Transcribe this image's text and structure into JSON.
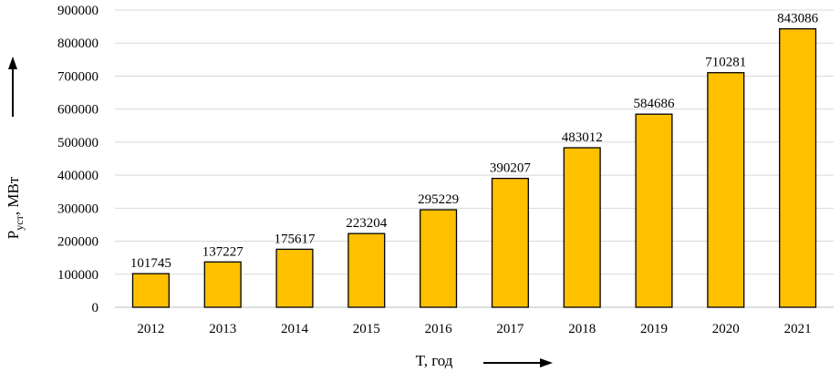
{
  "chart_data": {
    "type": "bar",
    "categories": [
      "2012",
      "2013",
      "2014",
      "2015",
      "2016",
      "2017",
      "2018",
      "2019",
      "2020",
      "2021"
    ],
    "values": [
      101745,
      137227,
      175617,
      223204,
      295229,
      390207,
      483012,
      584686,
      710281,
      843086
    ],
    "xlabel": "T, год",
    "ylabel": {
      "prefix": "P",
      "subscript": "уст",
      "suffix": ", МВт"
    },
    "ylim": [
      0,
      900000
    ],
    "yticks": [
      "0",
      "100000",
      "200000",
      "300000",
      "400000",
      "500000",
      "600000",
      "700000",
      "800000",
      "900000"
    ],
    "grid": true,
    "legend": "none",
    "data_labels": true
  },
  "colors": {
    "bar_fill": "#FFC000",
    "bar_stroke": "#000000",
    "grid": "#D9D9D9",
    "axis": "#BFBFBF",
    "text": "#000000"
  }
}
